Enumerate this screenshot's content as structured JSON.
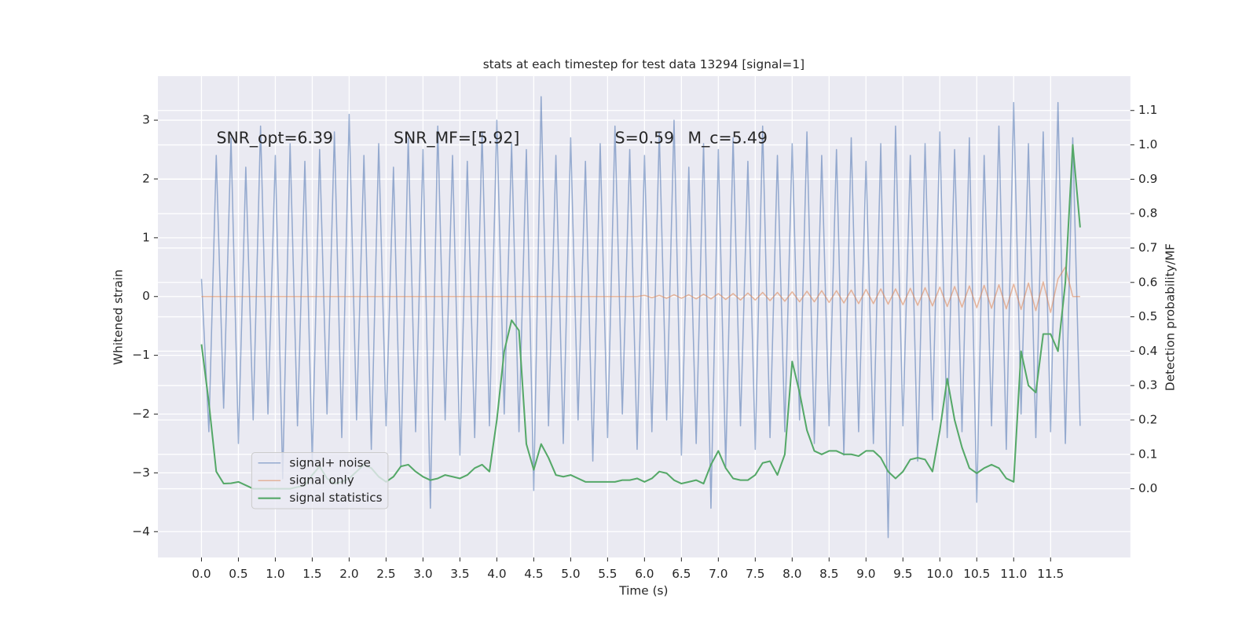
{
  "chart_data": {
    "type": "line",
    "title": "stats at each timestep for test data 13294 [signal=1]",
    "xlabel": "Time (s)",
    "ylabel": "Whitened strain",
    "y2label": "Detection probability/MF",
    "annotations": [
      "SNR_opt=6.39",
      "SNR_MF=[5.92]",
      "S=0.59",
      "M_c=5.49"
    ],
    "xlim": [
      -0.59,
      12.58
    ],
    "ylim": [
      -4.44,
      3.75
    ],
    "y2lim": [
      -0.2,
      1.2
    ],
    "xticks": [
      {
        "value": 0,
        "label": "0.0"
      },
      0.5,
      {
        "value": 1,
        "label": "1.0"
      },
      1.5,
      {
        "value": 2,
        "label": "2.0"
      },
      2.5,
      {
        "value": 3,
        "label": "3.0"
      },
      3.5,
      {
        "value": 4,
        "label": "4.0"
      },
      4.5,
      {
        "value": 5,
        "label": "5.0"
      },
      5.5,
      {
        "value": 6,
        "label": "6.0"
      },
      6.5,
      {
        "value": 7,
        "label": "7.0"
      },
      7.5,
      {
        "value": 8,
        "label": "8.0"
      },
      8.5,
      {
        "value": 9,
        "label": "9.0"
      },
      9.5,
      {
        "value": 10,
        "label": "10.0"
      },
      10.5,
      {
        "value": 11,
        "label": "11.0"
      },
      11.5
    ],
    "yticks": [
      {
        "value": -4,
        "label": "−4"
      },
      {
        "value": -3,
        "label": "−3"
      },
      {
        "value": -2,
        "label": "−2"
      },
      {
        "value": -1,
        "label": "−1"
      },
      0,
      1,
      2,
      3
    ],
    "y2ticks": [
      {
        "value": 0,
        "label": "0.0"
      },
      0.1,
      0.2,
      0.3,
      0.4,
      0.5,
      0.6,
      0.7,
      0.8,
      0.9,
      {
        "value": 1,
        "label": "1.0"
      },
      1.1
    ],
    "grid": true,
    "legend": "lower left",
    "x": [
      0,
      0.1,
      0.2,
      0.3,
      0.4,
      0.5,
      0.6,
      0.7,
      0.8,
      0.9,
      1,
      1.1,
      1.2,
      1.3,
      1.4,
      1.5,
      1.6,
      1.7,
      1.8,
      1.9,
      2,
      2.1,
      2.2,
      2.3,
      2.4,
      2.5,
      2.6,
      2.7,
      2.8,
      2.9,
      3,
      3.1,
      3.2,
      3.3,
      3.4,
      3.5,
      3.6,
      3.7,
      3.8,
      3.9,
      4,
      4.1,
      4.2,
      4.3,
      4.4,
      4.5,
      4.6,
      4.7,
      4.8,
      4.9,
      5,
      5.1,
      5.2,
      5.3,
      5.4,
      5.5,
      5.6,
      5.7,
      5.8,
      5.9,
      6,
      6.1,
      6.2,
      6.3,
      6.4,
      6.5,
      6.6,
      6.7,
      6.8,
      6.9,
      7,
      7.1,
      7.2,
      7.3,
      7.4,
      7.5,
      7.6,
      7.7,
      7.8,
      7.9,
      8,
      8.1,
      8.2,
      8.3,
      8.4,
      8.5,
      8.6,
      8.7,
      8.8,
      8.9,
      9,
      9.1,
      9.2,
      9.3,
      9.4,
      9.5,
      9.6,
      9.7,
      9.8,
      9.9,
      10,
      10.1,
      10.2,
      10.3,
      10.4,
      10.5,
      10.6,
      10.7,
      10.8,
      10.9,
      11,
      11.1,
      11.2,
      11.3,
      11.4,
      11.5,
      11.6,
      11.7,
      11.8,
      11.9
    ],
    "series": [
      {
        "name": "signal+ noise",
        "color": "#4c72b0",
        "values": [
          0.3,
          -2.3,
          2.4,
          -1.9,
          2.7,
          -2.5,
          2.2,
          -2.1,
          2.9,
          -2.0,
          2.4,
          -3.1,
          2.6,
          -2.2,
          2.3,
          -2.8,
          2.5,
          -2.0,
          2.8,
          -2.4,
          3.1,
          -2.1,
          2.4,
          -2.6,
          2.6,
          -2.2,
          2.2,
          -2.9,
          2.7,
          -2.3,
          2.5,
          -3.6,
          2.9,
          -2.1,
          2.4,
          -2.7,
          2.3,
          -2.4,
          2.8,
          -2.2,
          3.0,
          -2.0,
          2.6,
          -2.3,
          2.5,
          -3.3,
          3.4,
          -2.2,
          2.4,
          -2.5,
          2.7,
          -2.1,
          2.3,
          -2.8,
          2.6,
          -2.4,
          2.9,
          -2.0,
          2.5,
          -2.6,
          2.4,
          -2.3,
          2.8,
          -2.1,
          3.0,
          -2.7,
          2.2,
          -2.5,
          2.6,
          -3.6,
          2.5,
          -2.9,
          2.7,
          -2.2,
          2.3,
          -2.6,
          2.9,
          -2.4,
          2.4,
          -2.3,
          2.6,
          -2.1,
          2.8,
          -2.5,
          2.4,
          -2.2,
          2.5,
          -2.7,
          2.7,
          -2.3,
          2.3,
          -2.5,
          2.6,
          -4.1,
          2.9,
          -2.2,
          2.4,
          -2.8,
          2.6,
          -2.1,
          2.8,
          -2.4,
          2.5,
          -2.3,
          2.7,
          -3.5,
          2.4,
          -2.2,
          2.9,
          -2.6,
          3.3,
          -2.0,
          2.6,
          -2.4,
          2.8,
          -2.3,
          3.3,
          -2.5,
          2.7,
          -2.2
        ]
      },
      {
        "name": "signal only",
        "color": "#dd8452",
        "values": [
          0,
          0,
          0,
          0,
          0,
          0,
          0,
          0,
          0,
          0,
          0,
          0,
          0,
          0,
          0,
          0,
          0,
          0,
          0,
          0,
          0,
          0,
          0,
          0,
          0,
          0,
          0,
          0,
          0,
          0,
          0,
          0,
          0,
          0,
          0,
          0,
          0,
          0,
          0,
          0,
          0,
          0,
          0,
          0,
          0,
          0,
          0,
          0,
          0,
          0,
          0,
          0,
          0,
          0,
          0,
          0,
          0,
          0,
          0,
          0,
          0.02,
          -0.02,
          0.02,
          -0.03,
          0.03,
          -0.03,
          0.03,
          -0.04,
          0.04,
          -0.04,
          0.05,
          -0.05,
          0.05,
          -0.06,
          0.06,
          -0.06,
          0.07,
          -0.07,
          0.07,
          -0.08,
          0.08,
          -0.09,
          0.09,
          -0.09,
          0.1,
          -0.1,
          0.1,
          -0.11,
          0.11,
          -0.12,
          0.12,
          -0.12,
          0.13,
          -0.13,
          0.13,
          -0.14,
          0.14,
          -0.15,
          0.15,
          -0.16,
          0.16,
          -0.17,
          0.17,
          -0.18,
          0.18,
          -0.19,
          0.19,
          -0.2,
          0.2,
          -0.21,
          0.21,
          -0.22,
          0.23,
          -0.24,
          0.25,
          -0.27,
          0.3,
          0.5,
          0,
          0
        ]
      },
      {
        "name": "signal statistics",
        "color": "#55a868",
        "axis": "y2",
        "values": [
          0.42,
          0.25,
          0.05,
          0.015,
          0.016,
          0.02,
          0.01,
          0,
          0,
          0,
          0,
          0,
          0,
          0.005,
          0.01,
          0.04,
          0.065,
          0.03,
          0.015,
          0.02,
          0.03,
          0.05,
          0.07,
          0.06,
          0.035,
          0.02,
          0.035,
          0.065,
          0.07,
          0.05,
          0.035,
          0.025,
          0.03,
          0.04,
          0.035,
          0.03,
          0.04,
          0.06,
          0.07,
          0.05,
          0.2,
          0.4,
          0.49,
          0.46,
          0.13,
          0.055,
          0.13,
          0.09,
          0.04,
          0.035,
          0.04,
          0.03,
          0.02,
          0.02,
          0.02,
          0.02,
          0.02,
          0.025,
          0.025,
          0.03,
          0.02,
          0.03,
          0.05,
          0.045,
          0.025,
          0.015,
          0.02,
          0.025,
          0.015,
          0.07,
          0.11,
          0.06,
          0.03,
          0.025,
          0.025,
          0.04,
          0.075,
          0.08,
          0.04,
          0.1,
          0.37,
          0.28,
          0.17,
          0.11,
          0.1,
          0.11,
          0.11,
          0.1,
          0.1,
          0.095,
          0.11,
          0.11,
          0.09,
          0.05,
          0.03,
          0.05,
          0.085,
          0.09,
          0.085,
          0.05,
          0.17,
          0.32,
          0.2,
          0.12,
          0.06,
          0.045,
          0.06,
          0.07,
          0.06,
          0.03,
          0.02,
          0.4,
          0.3,
          0.28,
          0.45,
          0.45,
          0.4,
          0.6,
          1.0,
          0.76
        ]
      }
    ]
  }
}
